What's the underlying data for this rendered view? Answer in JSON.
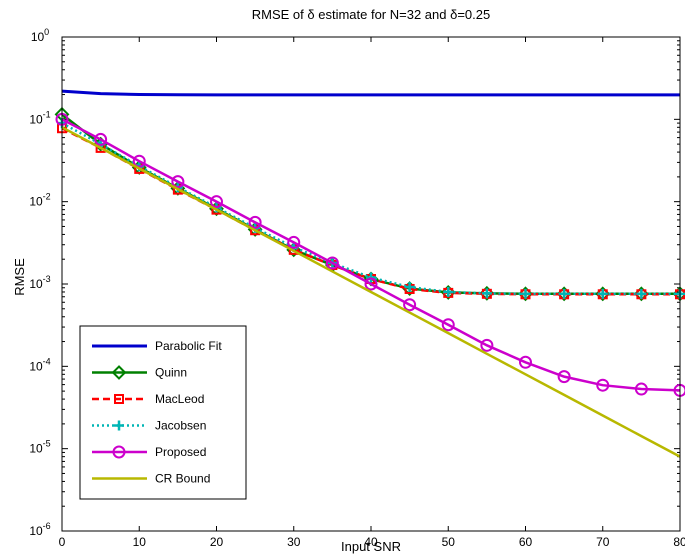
{
  "chart_data": {
    "type": "line",
    "title": "RMSE of δ estimate for N=32 and  δ=0.25",
    "xlabel": "Input SNR",
    "ylabel": "RMSE",
    "xlim": [
      0,
      80
    ],
    "ylim": [
      1e-06,
      1
    ],
    "yscale": "log",
    "grid": false,
    "legend_position": "bottom-left",
    "x_ticks": [
      0,
      10,
      20,
      30,
      40,
      50,
      60,
      70,
      80
    ],
    "x_tick_labels": [
      "0",
      "10",
      "20",
      "30",
      "40",
      "50",
      "60",
      "70",
      "80"
    ],
    "y_ticks": [
      1,
      0.1,
      0.01,
      0.001,
      0.0001,
      1e-05,
      1e-06
    ],
    "y_tick_labels": [
      {
        "base": "10",
        "exp": "0"
      },
      {
        "base": "10",
        "exp": "-1"
      },
      {
        "base": "10",
        "exp": "-2"
      },
      {
        "base": "10",
        "exp": "-3"
      },
      {
        "base": "10",
        "exp": "-4"
      },
      {
        "base": "10",
        "exp": "-5"
      },
      {
        "base": "10",
        "exp": "-6"
      }
    ],
    "x": [
      0,
      5,
      10,
      15,
      20,
      25,
      30,
      35,
      40,
      45,
      50,
      55,
      60,
      65,
      70,
      75,
      80
    ],
    "series": [
      {
        "name": "Parabolic Fit",
        "color": "#0000cc",
        "line_style": "solid",
        "marker": "none",
        "values": [
          0.22,
          0.205,
          0.2,
          0.199,
          0.198,
          0.198,
          0.198,
          0.198,
          0.198,
          0.198,
          0.198,
          0.198,
          0.198,
          0.198,
          0.198,
          0.198,
          0.198
        ]
      },
      {
        "name": "Quinn",
        "color": "#008000",
        "line_style": "solid",
        "marker": "diamond",
        "values": [
          0.115,
          0.05,
          0.026,
          0.0145,
          0.0082,
          0.0046,
          0.0026,
          0.0017,
          0.00115,
          0.00088,
          0.00079,
          0.00077,
          0.00076,
          0.00076,
          0.00076,
          0.00076,
          0.00076
        ]
      },
      {
        "name": "MacLeod",
        "color": "#ff0000",
        "line_style": "dashed",
        "marker": "square",
        "values": [
          0.078,
          0.045,
          0.025,
          0.014,
          0.008,
          0.0045,
          0.0026,
          0.0017,
          0.00115,
          0.00087,
          0.00078,
          0.00076,
          0.00075,
          0.00075,
          0.00075,
          0.00075,
          0.00075
        ]
      },
      {
        "name": "Jacobsen",
        "color": "#00b5b5",
        "line_style": "dotted",
        "marker": "plus",
        "values": [
          0.09,
          0.05,
          0.027,
          0.015,
          0.0085,
          0.0048,
          0.0028,
          0.0018,
          0.0012,
          0.00092,
          0.0008,
          0.00077,
          0.00076,
          0.00076,
          0.00076,
          0.00076,
          0.00076
        ]
      },
      {
        "name": "Proposed",
        "color": "#cc00cc",
        "line_style": "solid",
        "marker": "circle",
        "values": [
          0.1,
          0.057,
          0.031,
          0.0175,
          0.01,
          0.0056,
          0.0032,
          0.0018,
          0.001,
          0.00056,
          0.00032,
          0.00018,
          0.000112,
          7.5e-05,
          5.9e-05,
          5.3e-05,
          5.1e-05
        ]
      },
      {
        "name": "CR Bound",
        "color": "#b8b800",
        "line_style": "solid",
        "marker": "none",
        "values": [
          0.08,
          0.045,
          0.0253,
          0.0142,
          0.008,
          0.0045,
          0.00253,
          0.00142,
          0.0008,
          0.00045,
          0.000253,
          0.000142,
          8e-05,
          4.5e-05,
          2.53e-05,
          1.42e-05,
          8e-06
        ]
      }
    ]
  }
}
